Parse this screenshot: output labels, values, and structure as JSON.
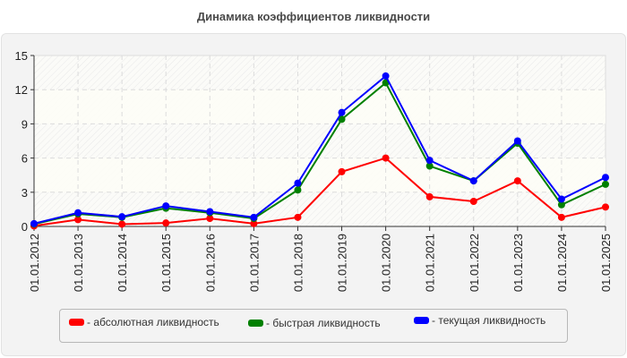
{
  "title": "Динамика коэффициентов ликвидности",
  "legend": [
    {
      "label": "- абсолютная ликвидность",
      "color": "#ff0000"
    },
    {
      "label": "- быстрая ликвидность",
      "color": "#008000"
    },
    {
      "label": "- текущая ликвидность",
      "color": "#0000ff"
    }
  ],
  "chart_data": {
    "type": "line",
    "title": "Динамика коэффициентов ликвидности",
    "xlabel": "",
    "ylabel": "",
    "ylim": [
      0,
      15
    ],
    "yticks": [
      0,
      3,
      6,
      9,
      12,
      15
    ],
    "grid": true,
    "legend_position": "bottom",
    "categories": [
      "01.01.2012",
      "01.01.2013",
      "01.01.2014",
      "01.01.2015",
      "01.01.2016",
      "01.01.2017",
      "01.01.2018",
      "01.01.2019",
      "01.01.2020",
      "01.01.2021",
      "01.01.2022",
      "01.01.2023",
      "01.01.2024",
      "01.01.2025"
    ],
    "series": [
      {
        "name": "абсолютная ликвидность",
        "color": "#ff0000",
        "values": [
          0.05,
          0.6,
          0.2,
          0.3,
          0.7,
          0.25,
          0.8,
          4.8,
          6.0,
          2.6,
          2.2,
          4.0,
          0.8,
          1.7
        ]
      },
      {
        "name": "быстрая ликвидность",
        "color": "#008000",
        "values": [
          0.2,
          1.1,
          0.8,
          1.6,
          1.2,
          0.7,
          3.2,
          9.4,
          12.6,
          5.3,
          4.0,
          7.3,
          1.9,
          3.7
        ]
      },
      {
        "name": "текущая ликвидность",
        "color": "#0000ff",
        "values": [
          0.25,
          1.2,
          0.85,
          1.8,
          1.3,
          0.8,
          3.8,
          10.0,
          13.2,
          5.8,
          4.0,
          7.5,
          2.4,
          4.3
        ]
      }
    ]
  }
}
